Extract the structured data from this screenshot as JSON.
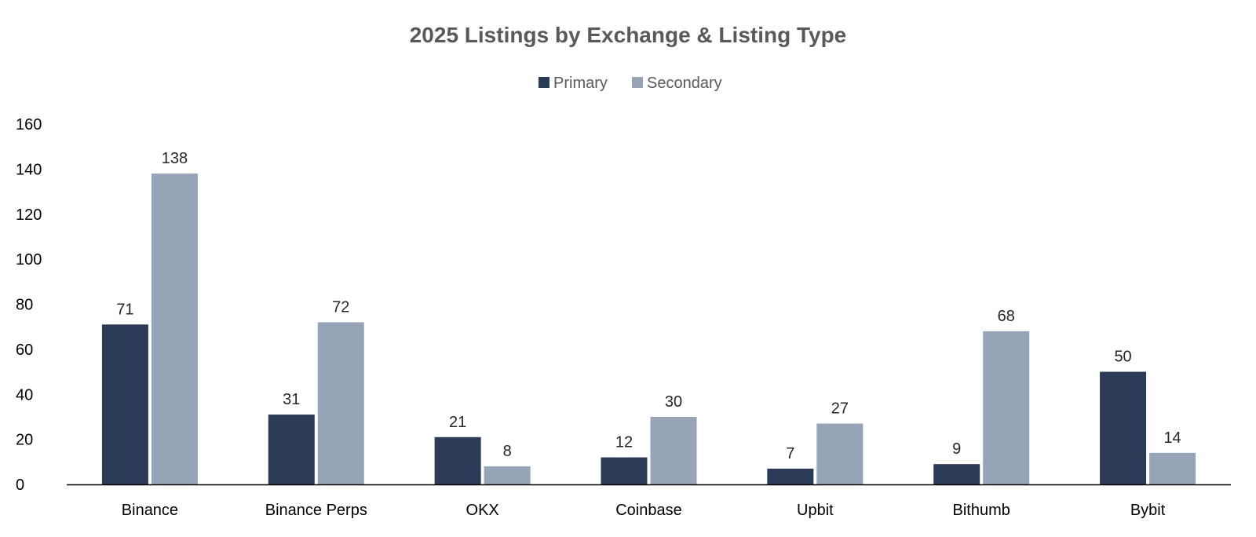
{
  "chart_data": {
    "type": "bar",
    "title": "2025 Listings by Exchange & Listing Type",
    "xlabel": "",
    "ylabel": "",
    "categories": [
      "Binance",
      "Binance Perps",
      "OKX",
      "Coinbase",
      "Upbit",
      "Bithumb",
      "Bybit"
    ],
    "series": [
      {
        "name": "Primary",
        "color": "#2b3a55",
        "values": [
          71,
          31,
          21,
          12,
          7,
          9,
          50
        ]
      },
      {
        "name": "Secondary",
        "color": "#97a4b8",
        "values": [
          138,
          72,
          8,
          30,
          27,
          68,
          14
        ]
      }
    ],
    "ylim": [
      0,
      160
    ],
    "yticks": [
      0,
      20,
      40,
      60,
      80,
      100,
      120,
      140,
      160
    ],
    "grid": false,
    "legend_position": "top-center",
    "data_labels": true
  }
}
